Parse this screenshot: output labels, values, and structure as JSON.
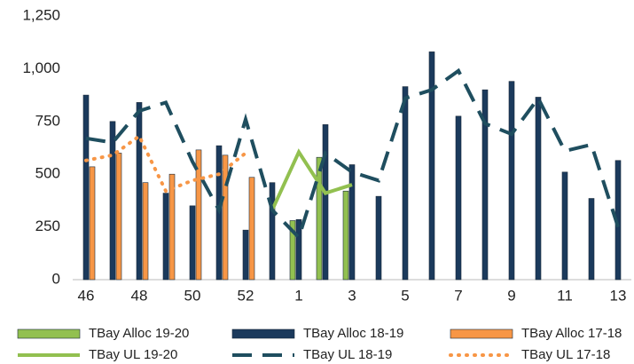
{
  "chart_data": {
    "type": "bar",
    "categories": [
      "46",
      null,
      "48",
      null,
      "50",
      null,
      "52",
      null,
      "1",
      null,
      "3",
      null,
      "5",
      null,
      "7",
      null,
      "9",
      null,
      "11",
      null,
      "13"
    ],
    "series": [
      {
        "name": "TBay Alloc 19-20",
        "type": "bar",
        "color": "#92c050",
        "values": [
          null,
          null,
          null,
          null,
          null,
          null,
          null,
          null,
          280,
          580,
          420,
          null,
          null,
          null,
          null,
          null,
          null,
          null,
          null,
          null,
          null
        ]
      },
      {
        "name": "TBay Alloc 18-19",
        "type": "bar",
        "color": "#1b3a5c",
        "values": [
          875,
          750,
          840,
          410,
          350,
          635,
          235,
          460,
          285,
          735,
          545,
          395,
          915,
          1080,
          775,
          900,
          940,
          865,
          510,
          385,
          565
        ]
      },
      {
        "name": "TBay Alloc 17-18",
        "type": "bar",
        "color": "#f79646",
        "values": [
          535,
          600,
          460,
          500,
          615,
          590,
          485,
          null,
          null,
          null,
          null,
          null,
          null,
          null,
          null,
          null,
          null,
          null,
          null,
          null,
          null
        ]
      },
      {
        "name": "TBay UL 19-20",
        "type": "line",
        "dash": "solid",
        "color": "#92c050",
        "values": [
          null,
          null,
          null,
          null,
          null,
          null,
          null,
          330,
          605,
          410,
          450,
          null,
          null,
          null,
          null,
          null,
          null,
          null,
          null,
          null,
          null
        ]
      },
      {
        "name": "TBay UL 18-19",
        "type": "line",
        "dash": "dashed",
        "color": "#1f4e5f",
        "values": [
          670,
          650,
          800,
          840,
          560,
          330,
          760,
          330,
          200,
          600,
          510,
          470,
          860,
          900,
          990,
          740,
          690,
          860,
          610,
          640,
          250
        ]
      },
      {
        "name": "TBay UL 17-18",
        "type": "line",
        "dash": "dotted",
        "color": "#f79646",
        "values": [
          565,
          590,
          680,
          420,
          470,
          500,
          600,
          null,
          null,
          null,
          null,
          null,
          null,
          null,
          null,
          null,
          null,
          null,
          null,
          null,
          null
        ]
      }
    ],
    "ylim": [
      0,
      1250
    ],
    "yticks": [
      0,
      250,
      500,
      750,
      {
        "value": 1000,
        "label": "1,000"
      },
      {
        "value": 1250,
        "label": "1,250"
      }
    ],
    "grid": false
  }
}
